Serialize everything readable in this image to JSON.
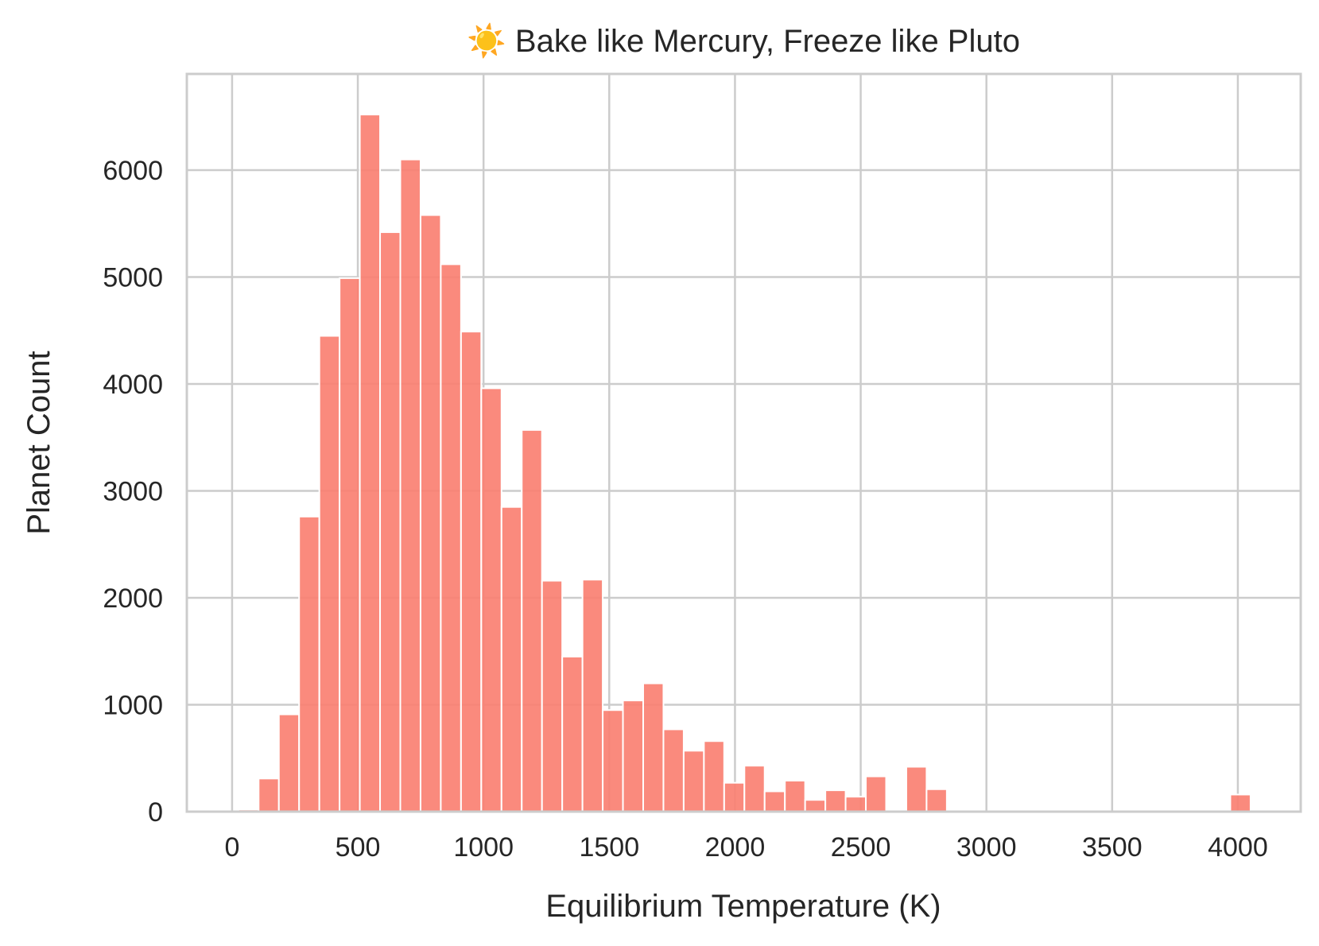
{
  "chart_data": {
    "type": "bar",
    "title": "☀️ Bake like Mercury, Freeze like Pluto",
    "xlabel": "Equilibrium Temperature (K)",
    "ylabel": "Planet Count",
    "xlim": [
      -180,
      4250
    ],
    "ylim": [
      0,
      6900
    ],
    "xticks": [
      0,
      500,
      1000,
      1500,
      2000,
      2500,
      3000,
      3500,
      4000
    ],
    "yticks": [
      0,
      1000,
      2000,
      3000,
      4000,
      5000,
      6000
    ],
    "grid": true,
    "bar_color": "#fa8072",
    "bin_width": 80.5,
    "bins": [
      {
        "start": 25,
        "count": 20
      },
      {
        "start": 105.5,
        "count": 310
      },
      {
        "start": 186,
        "count": 910
      },
      {
        "start": 266.5,
        "count": 2760
      },
      {
        "start": 347,
        "count": 4450
      },
      {
        "start": 427.5,
        "count": 4990
      },
      {
        "start": 508,
        "count": 6520
      },
      {
        "start": 588.5,
        "count": 5420
      },
      {
        "start": 669,
        "count": 6100
      },
      {
        "start": 749.5,
        "count": 5580
      },
      {
        "start": 830,
        "count": 5120
      },
      {
        "start": 910.5,
        "count": 4490
      },
      {
        "start": 991,
        "count": 3960
      },
      {
        "start": 1071.5,
        "count": 2850
      },
      {
        "start": 1152,
        "count": 3570
      },
      {
        "start": 1232.5,
        "count": 2160
      },
      {
        "start": 1313,
        "count": 1450
      },
      {
        "start": 1393.5,
        "count": 2170
      },
      {
        "start": 1474,
        "count": 950
      },
      {
        "start": 1554.5,
        "count": 1040
      },
      {
        "start": 1635,
        "count": 1200
      },
      {
        "start": 1715.5,
        "count": 770
      },
      {
        "start": 1796,
        "count": 570
      },
      {
        "start": 1876.5,
        "count": 660
      },
      {
        "start": 1957,
        "count": 270
      },
      {
        "start": 2037.5,
        "count": 430
      },
      {
        "start": 2118,
        "count": 190
      },
      {
        "start": 2198.5,
        "count": 290
      },
      {
        "start": 2279,
        "count": 110
      },
      {
        "start": 2359.5,
        "count": 200
      },
      {
        "start": 2440,
        "count": 140
      },
      {
        "start": 2520.5,
        "count": 330
      },
      {
        "start": 2681.5,
        "count": 420
      },
      {
        "start": 2762,
        "count": 210
      },
      {
        "start": 3970,
        "count": 160
      }
    ]
  }
}
